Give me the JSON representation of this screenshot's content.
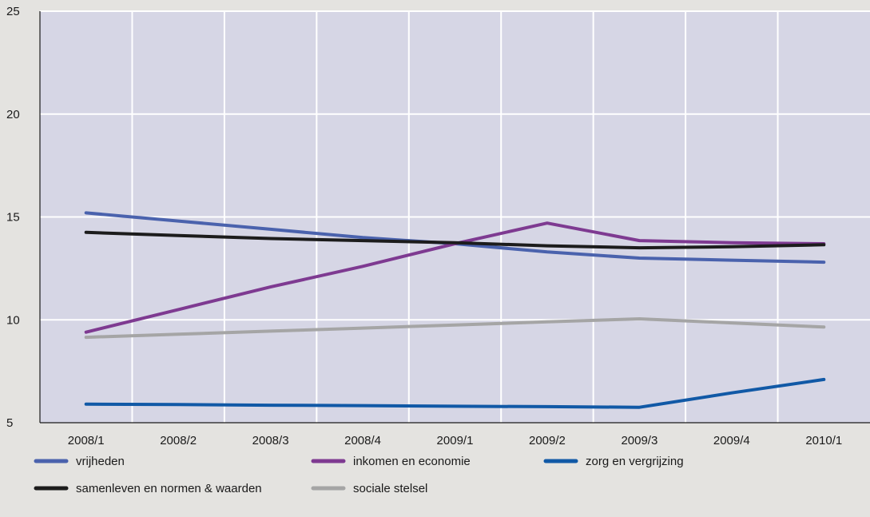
{
  "chart_data": {
    "type": "line",
    "title": "",
    "xlabel": "",
    "ylabel": "",
    "categories": [
      "2008/1",
      "2008/2",
      "2008/3",
      "2008/4",
      "2009/1",
      "2009/2",
      "2009/3",
      "2009/4",
      "2010/1"
    ],
    "ylim": [
      5,
      25
    ],
    "yticks": [
      5,
      10,
      15,
      20,
      25
    ],
    "grid": true,
    "legend_position": "bottom",
    "series": [
      {
        "name": "vrijheden",
        "color": "#4a62ad",
        "values": [
          15.2,
          14.8,
          14.4,
          14.0,
          13.7,
          13.3,
          13.0,
          12.9,
          12.8
        ]
      },
      {
        "name": "inkomen en economie",
        "color": "#7e3a91",
        "values": [
          9.4,
          10.5,
          11.6,
          12.6,
          13.7,
          14.7,
          13.85,
          13.75,
          13.7
        ]
      },
      {
        "name": "zorg en vergrijzing",
        "color": "#1159a6",
        "values": [
          5.9,
          5.88,
          5.85,
          5.83,
          5.8,
          5.78,
          5.75,
          6.45,
          7.1
        ]
      },
      {
        "name": "samenleven en normen & waarden",
        "color": "#1c1c1c",
        "values": [
          14.25,
          14.1,
          13.95,
          13.85,
          13.75,
          13.6,
          13.5,
          13.55,
          13.65
        ]
      },
      {
        "name": "sociale stelsel",
        "color": "#a5a5a5",
        "values": [
          9.15,
          9.3,
          9.45,
          9.6,
          9.75,
          9.9,
          10.05,
          9.85,
          9.65
        ]
      }
    ]
  }
}
